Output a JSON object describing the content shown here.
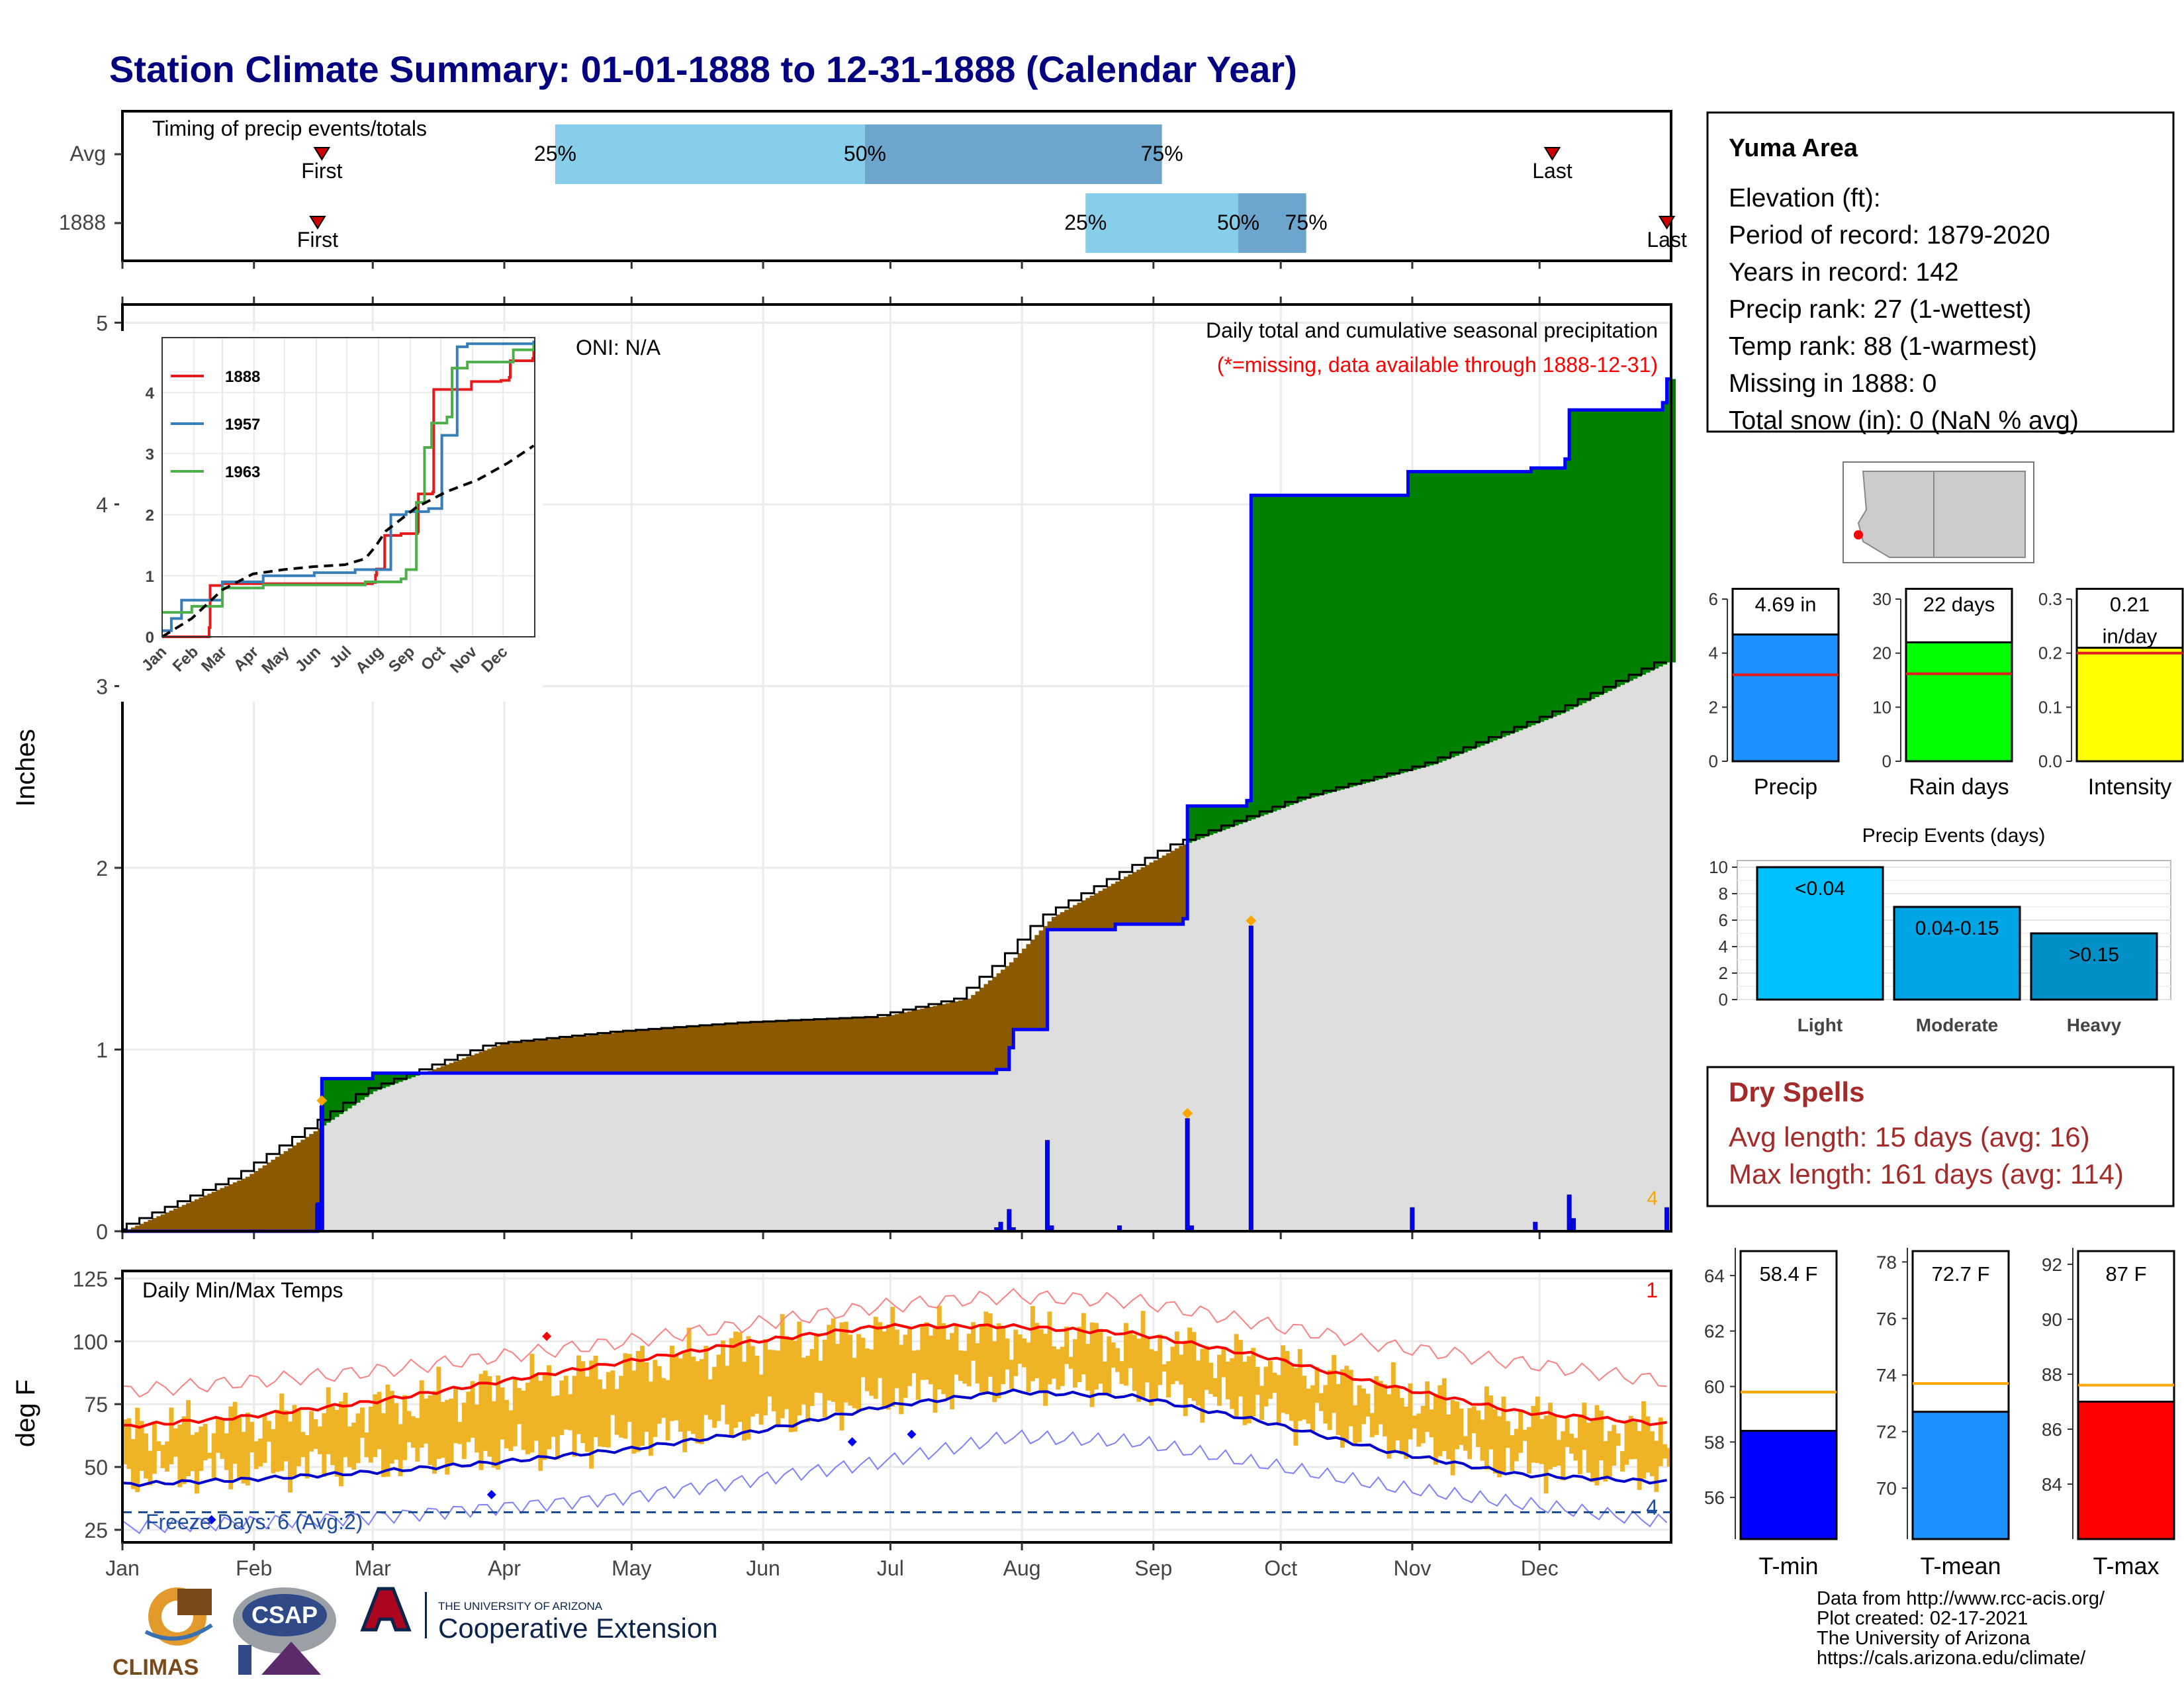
{
  "title": "Station Climate Summary: 01-01-1888 to 12-31-1888 (Calendar Year)",
  "colors": {
    "title": "#000080",
    "first_last": "#cc0000",
    "q_light": "#87ceeb",
    "q_dark": "#6ca6cd",
    "area_green": "#008000",
    "area_brown": "#8b5a00",
    "area_grey": "#dedede",
    "cum_line": "#0000ff",
    "daily_bar": "#0000ff",
    "marker": "#ffa500",
    "note": "#ff0000",
    "temp_bar": "#efb426",
    "tmax_avg": "#ff0000",
    "tmin_avg": "#0000cd",
    "rain_days": "#00ff00",
    "intensity": "#ffff00",
    "precip": "#1e90ff",
    "light": "#00bfff",
    "moderate": "#00a5e6",
    "heavy": "#0090c8",
    "tmin": "#0000ff",
    "tmean": "#1e90ff",
    "tmax": "#ff0000",
    "dry": "#a52a2a",
    "avg_line": "#ffa500"
  },
  "timing": {
    "title": "Timing of precip events/totals",
    "rows": [
      "Avg",
      "1888"
    ],
    "avg": {
      "first_label": "First",
      "last_label": "Last",
      "p25": "25%",
      "p50": "50%",
      "p75": "75%",
      "first_day": 48,
      "last_day": 338,
      "q25_day": 103,
      "q50_day": 176,
      "q75_day": 246
    },
    "y1888": {
      "first_label": "First",
      "last_label": "Last",
      "p25": "25%",
      "p50": "50%",
      "p75": "75%",
      "first_day": 47,
      "last_day": 365,
      "q25_day": 228,
      "q50_day": 264,
      "q75_day": 280
    }
  },
  "main": {
    "ylabel": "Inches",
    "y_ticks": [
      "0",
      "1",
      "2",
      "3",
      "4",
      "5"
    ],
    "oni": "ONI: N/A",
    "header": "Daily total and cumulative seasonal precipitation",
    "note": "(*=missing, data available through 1888-12-31)",
    "marker_label": "4"
  },
  "inset": {
    "months": [
      "Jan",
      "Feb",
      "Mar",
      "Apr",
      "May",
      "Jun",
      "Jul",
      "Aug",
      "Sep",
      "Oct",
      "Nov",
      "Dec"
    ],
    "y_ticks": [
      "0",
      "1",
      "2",
      "3",
      "4"
    ],
    "legend": [
      {
        "name": "1888",
        "color": "#e41a1c"
      },
      {
        "name": "1957",
        "color": "#377eb8"
      },
      {
        "name": "1963",
        "color": "#4daf4a"
      }
    ]
  },
  "station": {
    "name": "Yuma Area",
    "lines": [
      "Elevation (ft):",
      "Period of record: 1879-2020",
      "Years in record: 142",
      "Precip rank: 27 (1-wettest)",
      "Temp rank: 88 (1-warmest)",
      "Missing in 1888: 0",
      "Total snow (in): 0 (NaN % avg)"
    ]
  },
  "mini_bars": [
    {
      "label": "Precip",
      "value_text": "4.69 in",
      "value": 4.69,
      "avg": 3.2,
      "ymax": 6,
      "ticks": [
        "0",
        "2",
        "4",
        "6"
      ],
      "color": "#1e90ff"
    },
    {
      "label": "Rain days",
      "value_text": "22 days",
      "value": 22,
      "avg": 16.2,
      "ymax": 30,
      "ticks": [
        "0",
        "10",
        "20",
        "30"
      ],
      "color": "#00ff00"
    },
    {
      "label": "Intensity",
      "value_text": "0.21",
      "value_text2": "in/day",
      "value": 0.21,
      "avg": 0.2,
      "ymax": 0.3,
      "ticks": [
        "0.0",
        "0.1",
        "0.2",
        "0.3"
      ],
      "color": "#ffff00"
    }
  ],
  "events": {
    "title": "Precip Events (days)",
    "y_ticks": [
      "0",
      "2",
      "4",
      "6",
      "8",
      "10"
    ],
    "bars": [
      {
        "category": "Light",
        "label": "<0.04",
        "value": 10
      },
      {
        "category": "Moderate",
        "label": "0.04-0.15",
        "value": 7
      },
      {
        "category": "Heavy",
        "label": ">0.15",
        "value": 5
      }
    ]
  },
  "dry": {
    "title": "Dry Spells",
    "avg_line": "Avg length: 15 days (avg: 16)",
    "max_line": "Max length: 161 days (avg: 114)"
  },
  "temps": {
    "ylabel": "deg F",
    "title": "Daily Min/Max Temps",
    "y_ticks": [
      "25",
      "50",
      "75",
      "100",
      "125"
    ],
    "months": [
      "Jan",
      "Feb",
      "Mar",
      "Apr",
      "May",
      "Jun",
      "Jul",
      "Aug",
      "Sep",
      "Oct",
      "Nov",
      "Dec"
    ],
    "freeze": "Freeze Days: 6 (Avg:2)",
    "top_count": "1",
    "bottom_count": "4",
    "freeze_line": 32
  },
  "temp_bars": [
    {
      "label": "T-min",
      "value_text": "58.4 F",
      "value": 58.4,
      "avg": 59.8,
      "ymin": 54.5,
      "ymax": 65,
      "ticks": [
        "56",
        "58",
        "60",
        "62",
        "64"
      ],
      "tick_vals": [
        56,
        58,
        60,
        62,
        64
      ],
      "color": "#0000ff"
    },
    {
      "label": "T-mean",
      "value_text": "72.7 F",
      "value": 72.7,
      "avg": 73.7,
      "ymin": 68.2,
      "ymax": 78.5,
      "ticks": [
        "70",
        "72",
        "74",
        "76",
        "78"
      ],
      "tick_vals": [
        70,
        72,
        74,
        76,
        78
      ],
      "color": "#1e90ff"
    },
    {
      "label": "T-max",
      "value_text": "87 F",
      "value": 87.0,
      "avg": 87.6,
      "ymin": 82,
      "ymax": 92.6,
      "ticks": [
        "84",
        "86",
        "88",
        "90",
        "92"
      ],
      "tick_vals": [
        84,
        86,
        88,
        90,
        92
      ],
      "color": "#ff0000"
    }
  ],
  "credits": [
    "Data from http://www.rcc-acis.org/",
    "Plot created: 02-17-2021",
    "The University of Arizona",
    "https://cals.arizona.edu/climate/"
  ],
  "logos": {
    "climas": "CLIMAS",
    "csap": "CSAP",
    "ua_small": "THE UNIVERSITY OF ARIZONA",
    "ua_big": "Cooperative Extension"
  },
  "chart_data": [
    {
      "type": "area",
      "title": "Daily total and cumulative seasonal precipitation",
      "ylabel": "Inches",
      "ylim": [
        0,
        5.1
      ],
      "x_unit": "day of year",
      "daily_precip": [
        {
          "day": 47,
          "in": 0.15
        },
        {
          "day": 48,
          "in": 0.69
        },
        {
          "day": 207,
          "in": 0.02
        },
        {
          "day": 208,
          "in": 0.05
        },
        {
          "day": 210,
          "in": 0.12
        },
        {
          "day": 211,
          "in": 0.02
        },
        {
          "day": 219,
          "in": 0.5
        },
        {
          "day": 220,
          "in": 0.03
        },
        {
          "day": 236,
          "in": 0.03
        },
        {
          "day": 252,
          "in": 0.62
        },
        {
          "day": 253,
          "in": 0.03
        },
        {
          "day": 267,
          "in": 1.68
        },
        {
          "day": 305,
          "in": 0.13
        },
        {
          "day": 334,
          "in": 0.05
        },
        {
          "day": 342,
          "in": 0.2
        },
        {
          "day": 343,
          "in": 0.07
        },
        {
          "day": 365,
          "in": 0.13
        }
      ],
      "series": [
        {
          "name": "1888",
          "x": [
            1,
            46,
            47,
            48,
            60,
            206,
            207,
            210,
            211,
            219,
            235,
            251,
            252,
            266,
            267,
            304,
            333,
            341,
            342,
            364,
            365
          ],
          "y": [
            0,
            0,
            0.15,
            0.84,
            0.87,
            0.87,
            0.89,
            1.01,
            1.11,
            1.66,
            1.69,
            1.72,
            2.34,
            2.37,
            4.05,
            4.18,
            4.2,
            4.25,
            4.52,
            4.56,
            4.69
          ]
        },
        {
          "name": "Average",
          "x": [
            1,
            30,
            60,
            90,
            120,
            150,
            180,
            200,
            210,
            220,
            250,
            280,
            310,
            340,
            365
          ],
          "y": [
            0,
            0.3,
            0.77,
            1.03,
            1.1,
            1.15,
            1.18,
            1.28,
            1.48,
            1.73,
            2.12,
            2.38,
            2.57,
            2.85,
            3.13
          ]
        }
      ]
    },
    {
      "type": "line",
      "title": "",
      "xlabel": "",
      "ylabel": "",
      "categories": [
        "Jan",
        "Feb",
        "Mar",
        "Apr",
        "May",
        "Jun",
        "Jul",
        "Aug",
        "Sep",
        "Oct",
        "Nov",
        "Dec"
      ],
      "ylim": [
        0,
        4.9
      ],
      "series": [
        {
          "name": "1888",
          "x": [
            1,
            46,
            47,
            48,
            60,
            206,
            207,
            210,
            211,
            219,
            235,
            251,
            252,
            266,
            267,
            304,
            333,
            341,
            342,
            364,
            365
          ],
          "y": [
            0,
            0,
            0.15,
            0.84,
            0.87,
            0.87,
            0.89,
            1.01,
            1.11,
            1.66,
            1.69,
            1.72,
            2.34,
            2.37,
            4.05,
            4.18,
            4.2,
            4.25,
            4.52,
            4.56,
            4.69
          ]
        },
        {
          "name": "1957",
          "x": [
            1,
            10,
            20,
            60,
            100,
            150,
            190,
            210,
            225,
            240,
            262,
            275,
            290,
            300,
            365
          ],
          "y": [
            0.1,
            0.3,
            0.6,
            0.9,
            1.0,
            1.05,
            1.1,
            1.1,
            2.0,
            2.05,
            2.1,
            3.3,
            4.75,
            4.8,
            4.85
          ]
        },
        {
          "name": "1963",
          "x": [
            1,
            30,
            60,
            100,
            150,
            200,
            235,
            240,
            250,
            258,
            265,
            280,
            285,
            300,
            345,
            365
          ],
          "y": [
            0.4,
            0.5,
            0.8,
            0.85,
            0.85,
            0.9,
            0.95,
            1.1,
            2.2,
            3.1,
            3.5,
            3.6,
            4.4,
            4.5,
            4.7,
            4.8
          ]
        },
        {
          "name": "Average",
          "x": [
            1,
            30,
            60,
            90,
            120,
            150,
            180,
            200,
            210,
            220,
            250,
            280,
            310,
            340,
            365
          ],
          "y": [
            0,
            0.3,
            0.77,
            1.03,
            1.1,
            1.15,
            1.18,
            1.28,
            1.48,
            1.73,
            2.12,
            2.38,
            2.57,
            2.85,
            3.13
          ]
        }
      ]
    },
    {
      "type": "line",
      "title": "Daily Min/Max Temps",
      "ylabel": "deg F",
      "ylim": [
        20,
        128
      ],
      "categories": [
        "Jan",
        "Feb",
        "Mar",
        "Apr",
        "May",
        "Jun",
        "Jul",
        "Aug",
        "Sep",
        "Oct",
        "Nov",
        "Dec"
      ],
      "series": [
        {
          "name": "avg max",
          "x": [
            1,
            30,
            60,
            90,
            120,
            150,
            180,
            210,
            240,
            270,
            300,
            330,
            365
          ],
          "y": [
            66,
            70,
            76,
            84,
            92,
            100,
            106,
            106,
            103,
            94,
            82,
            72,
            67
          ]
        },
        {
          "name": "avg min",
          "x": [
            1,
            30,
            60,
            90,
            120,
            150,
            180,
            210,
            240,
            270,
            300,
            330,
            365
          ],
          "y": [
            43,
            45,
            48,
            52,
            57,
            64,
            74,
            80,
            78,
            68,
            56,
            47,
            44
          ]
        },
        {
          "name": "record high",
          "x": [
            1,
            60,
            120,
            180,
            210,
            240,
            300,
            365
          ],
          "y": [
            80,
            88,
            100,
            114,
            118,
            116,
            98,
            84
          ]
        },
        {
          "name": "record low",
          "x": [
            1,
            60,
            120,
            180,
            210,
            240,
            300,
            365
          ],
          "y": [
            26,
            30,
            38,
            52,
            62,
            60,
            42,
            28
          ]
        }
      ]
    },
    {
      "type": "bar",
      "title": "Precip Events (days)",
      "categories": [
        "Light",
        "Moderate",
        "Heavy"
      ],
      "values": [
        10,
        7,
        5
      ],
      "ylim": [
        0,
        10.5
      ]
    }
  ]
}
